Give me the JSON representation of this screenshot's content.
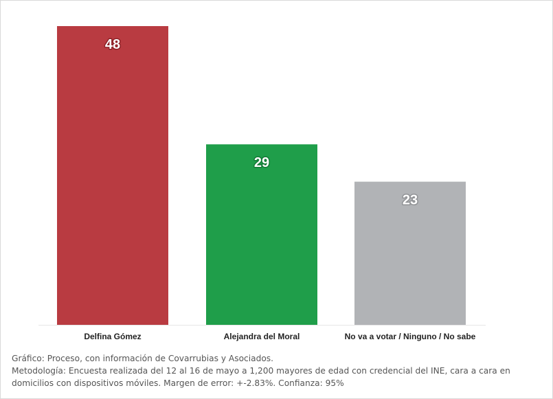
{
  "chart_data": {
    "type": "bar",
    "categories": [
      "Delfina Gómez",
      "Alejandra del Moral",
      "No va a votar / Ninguno / No sabe"
    ],
    "values": [
      48,
      29,
      23
    ],
    "colors": [
      "#b93b41",
      "#1f9e4a",
      "#b1b3b6"
    ],
    "label_outline_colors": [
      "#8e2228",
      "#137a36",
      "#909295"
    ],
    "ylim": [
      0,
      48
    ],
    "grid": false,
    "legend": "none"
  },
  "footer": {
    "source": "Gráfico: Proceso, con información de Covarrubias y Asociados.",
    "methodology": "Metodología: Encuesta realizada del 12 al 16 de mayo a 1,200 mayores de edad con credencial del INE, cara a cara en domicilios con dispositivos móviles. Margen de error: +-2.83%. Confianza: 95%"
  }
}
